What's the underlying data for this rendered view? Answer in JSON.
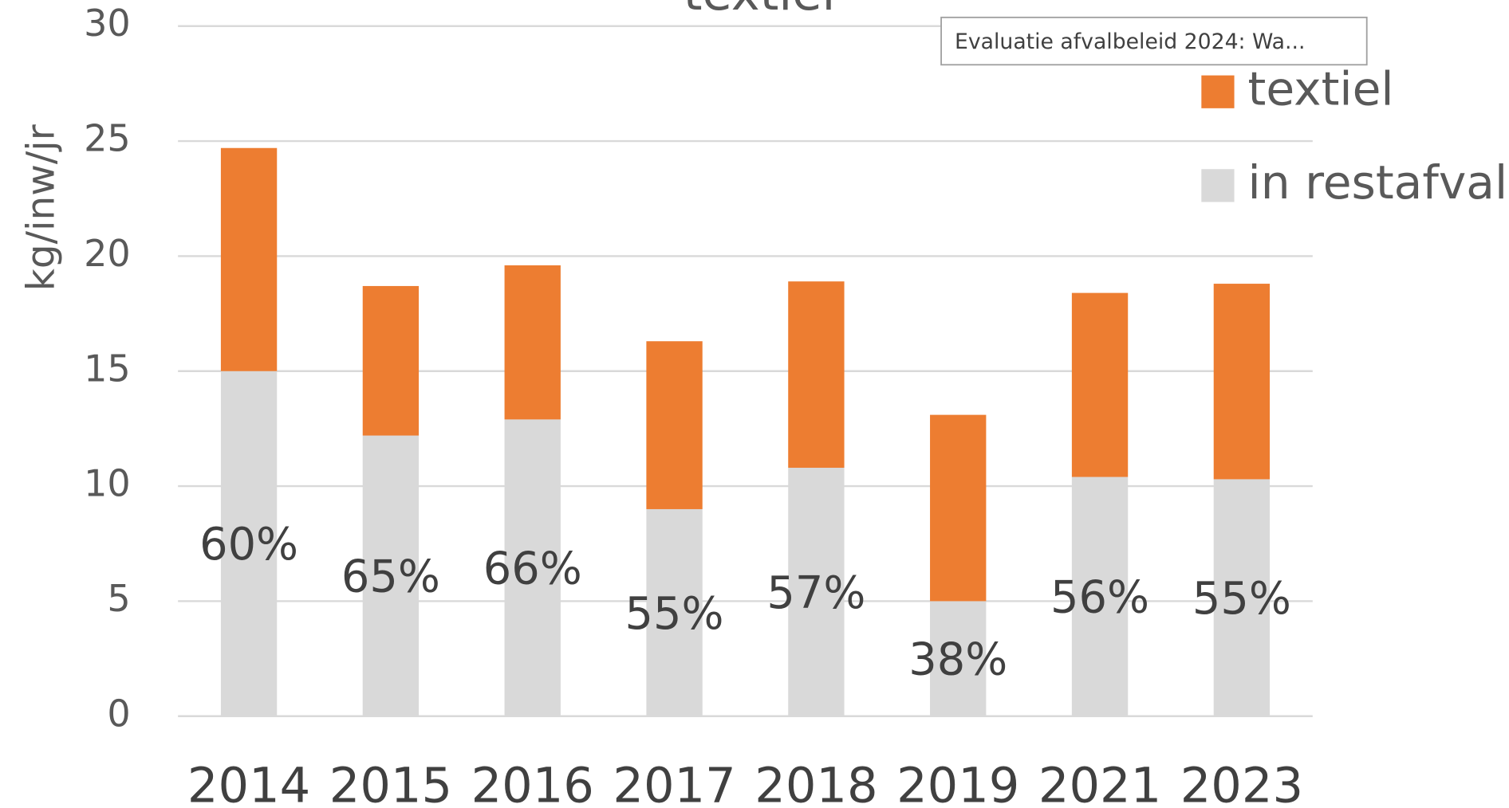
{
  "chart_data": {
    "type": "stacked_bar",
    "title": "textiel",
    "y_label": "kg/inw/jr",
    "tooltip": "Evaluatie afvalbeleid 2024:  Wa...",
    "categories": [
      "2014",
      "2015",
      "2016",
      "2017",
      "2018",
      "2019",
      "2021",
      "2023"
    ],
    "series": [
      {
        "name": "in restafval",
        "color": "#d9d9d9",
        "values": [
          15.0,
          12.2,
          12.9,
          9.0,
          10.8,
          5.0,
          10.4,
          10.3
        ]
      },
      {
        "name": "textiel",
        "color": "#ed7d31",
        "values": [
          9.7,
          6.5,
          6.7,
          7.3,
          8.1,
          8.1,
          8.0,
          8.5
        ]
      }
    ],
    "annotations": [
      "60%",
      "65%",
      "66%",
      "55%",
      "57%",
      "38%",
      "56%",
      "55%"
    ],
    "ylim": [
      0,
      30
    ],
    "yticks": [
      0,
      5,
      10,
      15,
      20,
      25,
      30
    ],
    "grid": true
  }
}
